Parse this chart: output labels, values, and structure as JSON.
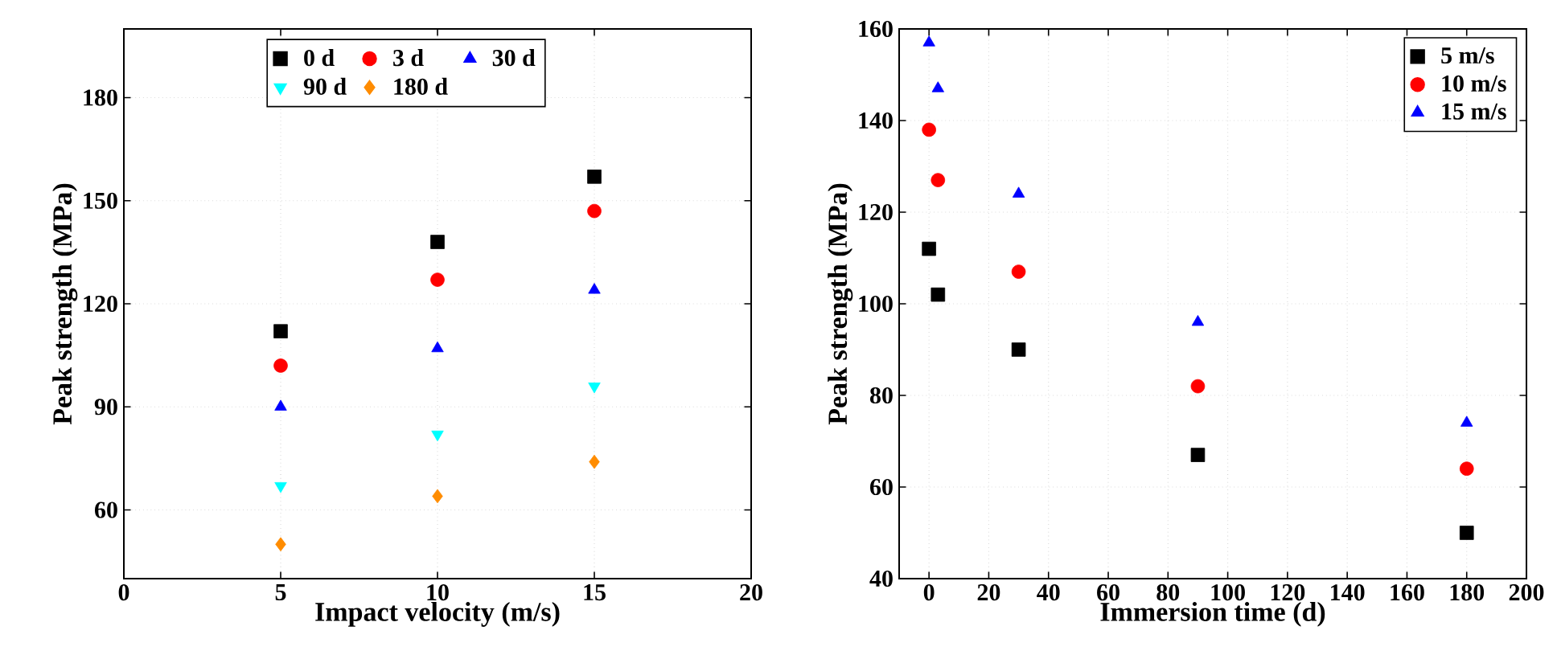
{
  "chart_data": [
    {
      "type": "scatter",
      "xlabel": "Impact velocity (m/s)",
      "ylabel": "Peak strength (MPa)",
      "xlim": [
        0,
        20
      ],
      "ylim": [
        40,
        200
      ],
      "xticks": [
        0,
        5,
        10,
        15,
        20
      ],
      "yticks": [
        60,
        90,
        120,
        150,
        180
      ],
      "grid": true,
      "legend": "top",
      "x": [
        5,
        10,
        15
      ],
      "series": [
        {
          "name": "0 d",
          "color": "#000000",
          "marker": "square",
          "values": [
            112,
            138,
            157
          ]
        },
        {
          "name": "3 d",
          "color": "#ff0000",
          "marker": "circle",
          "values": [
            102,
            127,
            147
          ]
        },
        {
          "name": "30 d",
          "color": "#0000ff",
          "marker": "triangle",
          "values": [
            90,
            107,
            124
          ]
        },
        {
          "name": "90 d",
          "color": "#00ffff",
          "marker": "triangle-down",
          "values": [
            67,
            82,
            96
          ]
        },
        {
          "name": "180 d",
          "color": "#ff8c00",
          "marker": "diamond",
          "values": [
            50,
            64,
            74
          ]
        }
      ]
    },
    {
      "type": "scatter",
      "xlabel": "Immersion time (d)",
      "ylabel": "Peak strength (MPa)",
      "xlim": [
        -10,
        200
      ],
      "ylim": [
        40,
        160
      ],
      "xticks": [
        0,
        20,
        40,
        60,
        80,
        100,
        120,
        140,
        160,
        180,
        200
      ],
      "yticks": [
        40,
        60,
        80,
        100,
        120,
        140,
        160
      ],
      "grid": true,
      "legend": "top right",
      "x": [
        0,
        3,
        30,
        90,
        180
      ],
      "series": [
        {
          "name": "5 m/s",
          "color": "#000000",
          "marker": "square",
          "values": [
            112,
            102,
            90,
            67,
            50
          ]
        },
        {
          "name": "10 m/s",
          "color": "#ff0000",
          "marker": "circle",
          "values": [
            138,
            127,
            107,
            82,
            64
          ]
        },
        {
          "name": "15 m/s",
          "color": "#0000ff",
          "marker": "triangle",
          "values": [
            157,
            147,
            124,
            96,
            74
          ]
        }
      ]
    }
  ]
}
